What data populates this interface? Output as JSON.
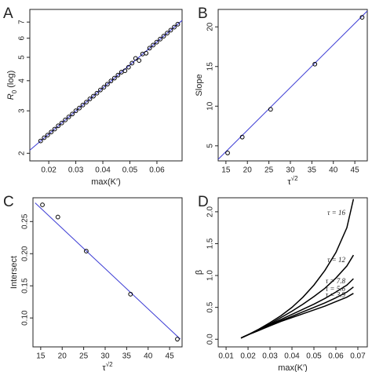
{
  "chart_data": [
    {
      "type": "scatter",
      "panel_label": "A",
      "xlabel": [
        {
          "text": "max(K′)"
        }
      ],
      "ylabel": [
        {
          "text": "R"
        },
        {
          "text": "0",
          "sub": true
        },
        {
          "text": " (log)"
        }
      ],
      "ylog": true,
      "xlim": [
        0.013,
        0.0693
      ],
      "ylim": [
        1.86,
        7.9
      ],
      "xticks": [
        0.02,
        0.03,
        0.04,
        0.05,
        0.06
      ],
      "yticks": [
        2,
        3,
        4,
        5,
        6,
        7
      ],
      "point_color": "#000000",
      "x": [
        0.017,
        0.0183,
        0.0196,
        0.0209,
        0.0222,
        0.0235,
        0.0248,
        0.0261,
        0.0274,
        0.0287,
        0.03,
        0.0313,
        0.0326,
        0.0339,
        0.0352,
        0.0365,
        0.0378,
        0.0391,
        0.0404,
        0.0417,
        0.043,
        0.0443,
        0.0456,
        0.0469,
        0.0482,
        0.0495,
        0.0508,
        0.0521,
        0.0534,
        0.0547,
        0.056,
        0.0573,
        0.0586,
        0.0599,
        0.0612,
        0.0625,
        0.0638,
        0.0651,
        0.0664,
        0.0677
      ],
      "y": [
        2.25,
        2.32,
        2.38,
        2.45,
        2.52,
        2.6,
        2.67,
        2.75,
        2.83,
        2.91,
        3.0,
        3.08,
        3.17,
        3.26,
        3.36,
        3.45,
        3.55,
        3.66,
        3.76,
        3.87,
        3.99,
        4.1,
        4.22,
        4.34,
        4.4,
        4.55,
        4.73,
        4.95,
        4.85,
        5.16,
        5.2,
        5.46,
        5.62,
        5.78,
        5.95,
        6.12,
        6.3,
        6.48,
        6.67,
        6.86
      ],
      "fit_line": {
        "color": "#3b3bd4",
        "x": [
          0.013,
          0.0693
        ],
        "y": [
          2.06,
          7.11
        ]
      }
    },
    {
      "type": "scatter",
      "panel_label": "B",
      "xlabel": [
        {
          "text": "τ"
        },
        {
          "text": "√2",
          "sup": true
        }
      ],
      "ylabel": [
        {
          "text": "Slope"
        }
      ],
      "ylog": false,
      "xlim": [
        13.2,
        47.9
      ],
      "ylim": [
        3.1,
        22.2
      ],
      "xticks": [
        15,
        20,
        25,
        30,
        35,
        40,
        45
      ],
      "yticks": [
        5,
        10,
        15,
        20
      ],
      "point_color": "#000000",
      "x": [
        15.4,
        18.8,
        25.4,
        35.7,
        46.7
      ],
      "y": [
        4.1,
        6.1,
        9.6,
        15.3,
        21.2
      ],
      "fit_line": {
        "color": "#3b3bd4",
        "x": [
          13.2,
          47.9
        ],
        "y": [
          3.3,
          22.0
        ]
      }
    },
    {
      "type": "scatter",
      "panel_label": "C",
      "xlabel": [
        {
          "text": "τ"
        },
        {
          "text": "√2",
          "sup": true
        }
      ],
      "ylabel": [
        {
          "text": "Intersect"
        }
      ],
      "ylog": false,
      "xlim": [
        13.2,
        47.9
      ],
      "ylim": [
        0.055,
        0.287
      ],
      "xticks": [
        15,
        20,
        25,
        30,
        35,
        40,
        45
      ],
      "yticks": [
        {
          "value": 0.1,
          "label": "0.10"
        },
        0.15,
        {
          "value": 0.2,
          "label": "0.20"
        },
        0.25
      ],
      "point_color": "#000000",
      "x": [
        15.4,
        19.0,
        25.6,
        35.9,
        46.8
      ],
      "y": [
        0.276,
        0.257,
        0.204,
        0.137,
        0.067
      ],
      "fit_line": {
        "color": "#3b3bd4",
        "x": [
          13.7,
          47.5
        ],
        "y": [
          0.279,
          0.067
        ]
      }
    },
    {
      "type": "line",
      "panel_label": "D",
      "xlabel": [
        {
          "text": "max(K′)"
        }
      ],
      "ylabel": [
        {
          "text": "β"
        }
      ],
      "ylog": false,
      "xlim": [
        0.0064,
        0.0743
      ],
      "ylim": [
        -0.12,
        2.22
      ],
      "xticks": [
        0.01,
        0.02,
        0.03,
        0.04,
        0.05,
        0.06,
        0.07
      ],
      "yticks": [
        {
          "value": 0,
          "label": "0.0"
        },
        0.5,
        {
          "value": 1,
          "label": "1.0"
        },
        1.5,
        {
          "value": 2,
          "label": "2.0"
        }
      ],
      "x": [
        0.0168,
        0.02,
        0.025,
        0.03,
        0.035,
        0.04,
        0.045,
        0.05,
        0.055,
        0.06,
        0.065,
        0.068
      ],
      "series": [
        {
          "name": "τ = 16",
          "color": "#000000",
          "values": [
            0.02,
            0.07,
            0.16,
            0.26,
            0.37,
            0.5,
            0.66,
            0.85,
            1.08,
            1.36,
            1.75,
            2.2
          ]
        },
        {
          "name": "τ = 12",
          "color": "#000000",
          "values": [
            0.02,
            0.07,
            0.15,
            0.24,
            0.34,
            0.44,
            0.55,
            0.67,
            0.8,
            0.96,
            1.15,
            1.32
          ]
        },
        {
          "name": "τ = 7.8",
          "color": "#000000",
          "values": [
            0.02,
            0.07,
            0.15,
            0.23,
            0.31,
            0.39,
            0.47,
            0.55,
            0.64,
            0.74,
            0.85,
            0.95
          ]
        },
        {
          "name": "τ = 5.6",
          "color": "#000000",
          "values": [
            0.02,
            0.07,
            0.14,
            0.22,
            0.29,
            0.36,
            0.43,
            0.5,
            0.57,
            0.65,
            0.74,
            0.82
          ]
        },
        {
          "name": "τ = 3.9",
          "color": "#000000",
          "values": [
            0.02,
            0.07,
            0.14,
            0.21,
            0.28,
            0.34,
            0.4,
            0.46,
            0.52,
            0.59,
            0.66,
            0.72
          ]
        }
      ]
    }
  ]
}
